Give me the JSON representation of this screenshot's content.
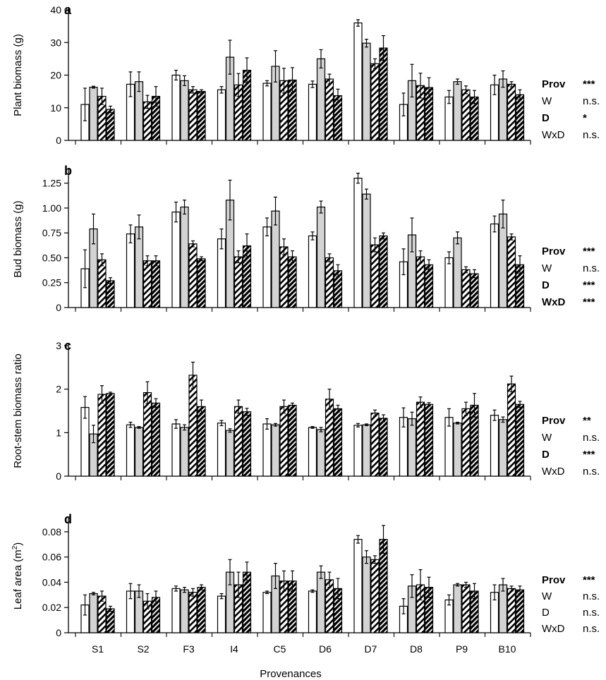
{
  "colors": {
    "wet_control": "#ffffff",
    "wet_drought": "#d3d3d3",
    "hatched_fill": "#ffffff",
    "hatch_lines": "#000000",
    "axis": "#000000",
    "text": "#000000"
  },
  "figure": {
    "xlabel": "Provenances",
    "categories": [
      "S1",
      "S2",
      "F3",
      "I4",
      "C5",
      "D6",
      "D7",
      "D8",
      "P9",
      "B10"
    ]
  },
  "bar_styles": [
    "white",
    "grey",
    "hatched",
    "hatched-dense"
  ],
  "chart_data": [
    {
      "type": "bar",
      "panel_letter": "a",
      "ylabel": "Plant biomass (g)",
      "ylabel_sup": "",
      "ylabel_suffix": "",
      "ylim": [
        0,
        40
      ],
      "yticks": [
        "0",
        "10",
        "20",
        "30",
        "40"
      ],
      "categories": [
        "S1",
        "S2",
        "F3",
        "I4",
        "C5",
        "D6",
        "D7",
        "D8",
        "P9",
        "B10"
      ],
      "series": [
        {
          "values": [
            11.0,
            17.2,
            20.0,
            15.5,
            17.5,
            17.2,
            36.0,
            11.0,
            13.3,
            17.0
          ],
          "errors": [
            5.0,
            3.8,
            1.5,
            1.0,
            0.8,
            1.0,
            1.0,
            3.5,
            2.0,
            3.0
          ]
        },
        {
          "values": [
            16.3,
            18.0,
            18.3,
            25.5,
            22.7,
            25.0,
            29.8,
            18.3,
            18.0,
            18.8
          ],
          "errors": [
            0.3,
            3.0,
            1.5,
            5.2,
            4.8,
            2.8,
            1.2,
            5.0,
            0.8,
            2.5
          ]
        },
        {
          "values": [
            13.5,
            11.8,
            15.5,
            17.0,
            18.3,
            18.8,
            23.5,
            16.8,
            15.5,
            17.2
          ],
          "errors": [
            2.5,
            2.0,
            1.0,
            3.5,
            3.8,
            1.5,
            1.5,
            3.8,
            1.2,
            0.8
          ]
        },
        {
          "values": [
            9.5,
            13.5,
            15.0,
            21.5,
            18.5,
            13.7,
            28.3,
            16.2,
            13.3,
            14.0
          ],
          "errors": [
            1.0,
            3.0,
            0.5,
            3.8,
            3.8,
            2.0,
            3.8,
            3.0,
            2.0,
            1.5
          ]
        }
      ],
      "stats": [
        {
          "label": "Prov",
          "value": "***",
          "bold": true
        },
        {
          "label": "W",
          "value": "n.s.",
          "bold": false
        },
        {
          "label": "D",
          "value": "*",
          "bold": true
        },
        {
          "label": "WxD",
          "value": "n.s.",
          "bold": false
        }
      ]
    },
    {
      "type": "bar",
      "panel_letter": "b",
      "ylabel": "Bud biomass (g)",
      "ylabel_sup": "",
      "ylabel_suffix": "",
      "ylim": [
        0,
        1.375
      ],
      "yticks": [
        "0",
        "0.25",
        "0.50",
        "0.75",
        "1.00",
        "1.25"
      ],
      "categories": [
        "S1",
        "S2",
        "F3",
        "I4",
        "C5",
        "D6",
        "D7",
        "D8",
        "P9",
        "B10"
      ],
      "series": [
        {
          "values": [
            0.39,
            0.74,
            0.96,
            0.69,
            0.81,
            0.72,
            1.3,
            0.46,
            0.5,
            0.84
          ],
          "errors": [
            0.19,
            0.09,
            0.1,
            0.1,
            0.09,
            0.04,
            0.05,
            0.13,
            0.06,
            0.08
          ]
        },
        {
          "values": [
            0.79,
            0.81,
            1.01,
            1.08,
            0.97,
            1.01,
            1.14,
            0.73,
            0.7,
            0.94
          ],
          "errors": [
            0.15,
            0.12,
            0.07,
            0.2,
            0.14,
            0.06,
            0.05,
            0.17,
            0.06,
            0.14
          ]
        },
        {
          "values": [
            0.48,
            0.47,
            0.64,
            0.51,
            0.61,
            0.5,
            0.63,
            0.51,
            0.38,
            0.71
          ],
          "errors": [
            0.06,
            0.05,
            0.03,
            0.06,
            0.08,
            0.04,
            0.07,
            0.06,
            0.03,
            0.03
          ]
        },
        {
          "values": [
            0.27,
            0.47,
            0.49,
            0.62,
            0.51,
            0.37,
            0.72,
            0.43,
            0.34,
            0.43
          ],
          "errors": [
            0.03,
            0.05,
            0.02,
            0.12,
            0.06,
            0.06,
            0.03,
            0.05,
            0.04,
            0.09
          ]
        }
      ],
      "stats": [
        {
          "label": "Prov",
          "value": "***",
          "bold": true
        },
        {
          "label": "W",
          "value": "n.s.",
          "bold": false
        },
        {
          "label": "D",
          "value": "***",
          "bold": true
        },
        {
          "label": "WxD",
          "value": "***",
          "bold": true
        }
      ]
    },
    {
      "type": "bar",
      "panel_letter": "c",
      "ylabel": "Root-stem biomass ratio",
      "ylabel_sup": "",
      "ylabel_suffix": "",
      "ylim": [
        0,
        3
      ],
      "yticks": [
        "0",
        "1",
        "2",
        "3"
      ],
      "categories": [
        "S1",
        "S2",
        "F3",
        "I4",
        "C5",
        "D6",
        "D7",
        "D8",
        "P9",
        "B10"
      ],
      "series": [
        {
          "values": [
            1.58,
            1.18,
            1.2,
            1.22,
            1.2,
            1.12,
            1.17,
            1.35,
            1.35,
            1.4
          ],
          "errors": [
            0.25,
            0.06,
            0.1,
            0.06,
            0.12,
            0.02,
            0.04,
            0.22,
            0.2,
            0.12
          ]
        },
        {
          "values": [
            0.97,
            1.12,
            1.12,
            1.05,
            1.18,
            1.07,
            1.18,
            1.32,
            1.22,
            1.3
          ],
          "errors": [
            0.2,
            0.02,
            0.06,
            0.04,
            0.03,
            0.05,
            0.02,
            0.15,
            0.02,
            0.06
          ]
        },
        {
          "values": [
            1.88,
            1.92,
            2.32,
            1.6,
            1.6,
            1.77,
            1.45,
            1.7,
            1.55,
            2.12
          ],
          "errors": [
            0.2,
            0.25,
            0.3,
            0.15,
            0.15,
            0.23,
            0.07,
            0.12,
            0.15,
            0.18
          ]
        },
        {
          "values": [
            1.9,
            1.68,
            1.6,
            1.48,
            1.63,
            1.55,
            1.33,
            1.65,
            1.63,
            1.65
          ],
          "errors": [
            0.03,
            0.1,
            0.15,
            0.08,
            0.05,
            0.08,
            0.08,
            0.04,
            0.27,
            0.07
          ]
        }
      ],
      "stats": [
        {
          "label": "Prov",
          "value": "**",
          "bold": true
        },
        {
          "label": "W",
          "value": "n.s.",
          "bold": false
        },
        {
          "label": "D",
          "value": "***",
          "bold": true
        },
        {
          "label": "WxD",
          "value": "n.s.",
          "bold": false
        }
      ]
    },
    {
      "type": "bar",
      "panel_letter": "d",
      "ylabel": "Leaf area (m",
      "ylabel_sup": "2",
      "ylabel_suffix": ")",
      "ylim": [
        0,
        0.09
      ],
      "yticks": [
        "0",
        "0.02",
        "0.04",
        "0.06",
        "0.08"
      ],
      "categories": [
        "S1",
        "S2",
        "F3",
        "I4",
        "C5",
        "D6",
        "D7",
        "D8",
        "P9",
        "B10"
      ],
      "series": [
        {
          "values": [
            0.022,
            0.033,
            0.035,
            0.029,
            0.032,
            0.033,
            0.074,
            0.021,
            0.026,
            0.032
          ],
          "errors": [
            0.008,
            0.006,
            0.002,
            0.002,
            0.001,
            0.001,
            0.003,
            0.006,
            0.004,
            0.006
          ]
        },
        {
          "values": [
            0.031,
            0.033,
            0.034,
            0.048,
            0.045,
            0.048,
            0.06,
            0.037,
            0.038,
            0.038
          ],
          "errors": [
            0.001,
            0.005,
            0.002,
            0.01,
            0.01,
            0.005,
            0.005,
            0.009,
            0.001,
            0.005
          ]
        },
        {
          "values": [
            0.029,
            0.025,
            0.032,
            0.038,
            0.041,
            0.042,
            0.058,
            0.038,
            0.038,
            0.035
          ],
          "errors": [
            0.004,
            0.006,
            0.003,
            0.01,
            0.008,
            0.006,
            0.003,
            0.012,
            0.002,
            0.002
          ]
        },
        {
          "values": [
            0.019,
            0.028,
            0.036,
            0.048,
            0.041,
            0.035,
            0.074,
            0.036,
            0.033,
            0.034
          ],
          "errors": [
            0.002,
            0.005,
            0.002,
            0.008,
            0.008,
            0.008,
            0.011,
            0.008,
            0.006,
            0.003
          ]
        }
      ],
      "stats": [
        {
          "label": "Prov",
          "value": "***",
          "bold": true
        },
        {
          "label": "W",
          "value": "n.s.",
          "bold": false
        },
        {
          "label": "D",
          "value": "n.s.",
          "bold": false
        },
        {
          "label": "WxD",
          "value": "n.s.",
          "bold": false
        }
      ]
    }
  ]
}
